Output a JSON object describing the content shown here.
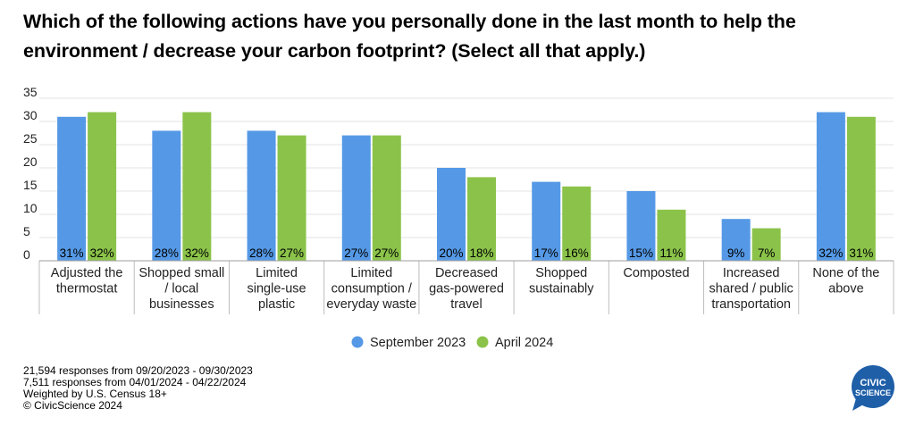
{
  "title": "Which of the following actions have you personally done in the last month to help the environment / decrease your carbon footprint? (Select all that apply.)",
  "chart_data": {
    "type": "bar",
    "categories": [
      [
        "Adjusted the",
        "thermostat"
      ],
      [
        "Shopped small",
        "/ local",
        "businesses"
      ],
      [
        "Limited",
        "single-use",
        "plastic"
      ],
      [
        "Limited",
        "consumption /",
        "everyday waste"
      ],
      [
        "Decreased",
        "gas-powered",
        "travel"
      ],
      [
        "Shopped",
        "sustainably"
      ],
      [
        "Composted"
      ],
      [
        "Increased",
        "shared / public",
        "transportation"
      ],
      [
        "None of the",
        "above"
      ]
    ],
    "series": [
      {
        "name": "September 2023",
        "color": "#5599e6",
        "values": [
          31,
          28,
          28,
          27,
          20,
          17,
          15,
          9,
          32
        ],
        "labels": [
          "31%",
          "28%",
          "28%",
          "27%",
          "20%",
          "17%",
          "15%",
          "9%",
          "32%"
        ]
      },
      {
        "name": "April 2024",
        "color": "#8bc34a",
        "values": [
          32,
          32,
          27,
          27,
          18,
          16,
          11,
          7,
          31
        ],
        "labels": [
          "32%",
          "32%",
          "27%",
          "27%",
          "18%",
          "16%",
          "11%",
          "7%",
          "31%"
        ]
      }
    ],
    "ylim": [
      0,
      35
    ],
    "yticks": [
      0,
      5,
      10,
      15,
      20,
      25,
      30,
      35
    ],
    "grid": true,
    "legend": "bottom-center"
  },
  "footnotes": [
    "21,594 responses from 09/20/2023 - 09/30/2023",
    "7,511 responses from 04/01/2024 - 04/22/2024",
    "Weighted by U.S. Census 18+",
    "© CivicScience 2024"
  ],
  "logo": {
    "line1": "CIVIC",
    "line2": "SCIENCE",
    "color": "#1f5fa8"
  }
}
